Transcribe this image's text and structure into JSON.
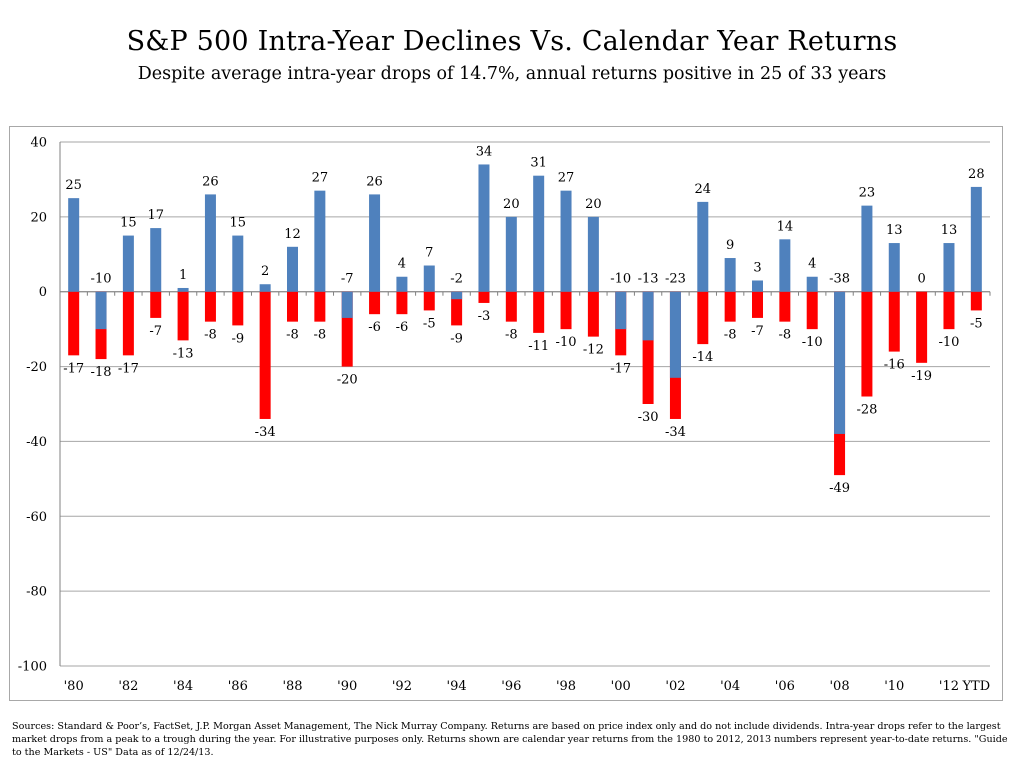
{
  "header": {
    "title": "S&P 500 Intra-Year Declines Vs. Calendar Year Returns",
    "subtitle": "Despite average intra-year drops of 14.7%, annual returns positive in 25 of 33 years"
  },
  "footnote": {
    "text": "Sources: Standard & Poor’s, FactSet, J.P. Morgan Asset Management, The Nick Murray Company. Returns are based on price index only and do not include dividends.  Intra-year drops refer to the largest market drops from a peak to a trough during the year. For illustrative purposes only.  Returns shown are calendar year returns from the 1980 to 2012, 2013 numbers represent year-to-date returns. \"Guide to the Markets - US\" Data as of 12/24/13."
  },
  "chart_data": {
    "type": "bar",
    "ylim": [
      -100,
      40
    ],
    "yticks": [
      40,
      20,
      0,
      -20,
      -40,
      -60,
      -80,
      -100
    ],
    "grid": true,
    "colors": {
      "annual_return": "#4f81bd",
      "intra_year_decline": "#ff0000",
      "gridline": "#a6a6a6",
      "axis": "#808080"
    },
    "x_tick_labels": [
      "'80",
      "",
      "'82",
      "",
      "'84",
      "",
      "'86",
      "",
      "'88",
      "",
      "'90",
      "",
      "'92",
      "",
      "'94",
      "",
      "'96",
      "",
      "'98",
      "",
      "'00",
      "",
      "'02",
      "",
      "'04",
      "",
      "'06",
      "",
      "'08",
      "",
      "'10",
      "",
      "'12",
      "YTD"
    ],
    "series": [
      {
        "key": "annual_return",
        "values": [
          25,
          -10,
          15,
          17,
          1,
          26,
          15,
          2,
          12,
          27,
          -7,
          26,
          4,
          7,
          -2,
          34,
          20,
          31,
          27,
          20,
          -10,
          -13,
          -23,
          24,
          9,
          3,
          14,
          4,
          -38,
          23,
          13,
          0,
          13,
          28
        ]
      },
      {
        "key": "intra_year_decline",
        "values": [
          -17,
          -18,
          -17,
          -7,
          -13,
          -8,
          -9,
          -34,
          -8,
          -8,
          -20,
          -6,
          -6,
          -5,
          -9,
          -3,
          -8,
          -11,
          -10,
          -12,
          -17,
          -30,
          -34,
          -14,
          -8,
          -7,
          -8,
          -10,
          -49,
          -28,
          -16,
          -19,
          -10,
          -5
        ]
      }
    ]
  }
}
